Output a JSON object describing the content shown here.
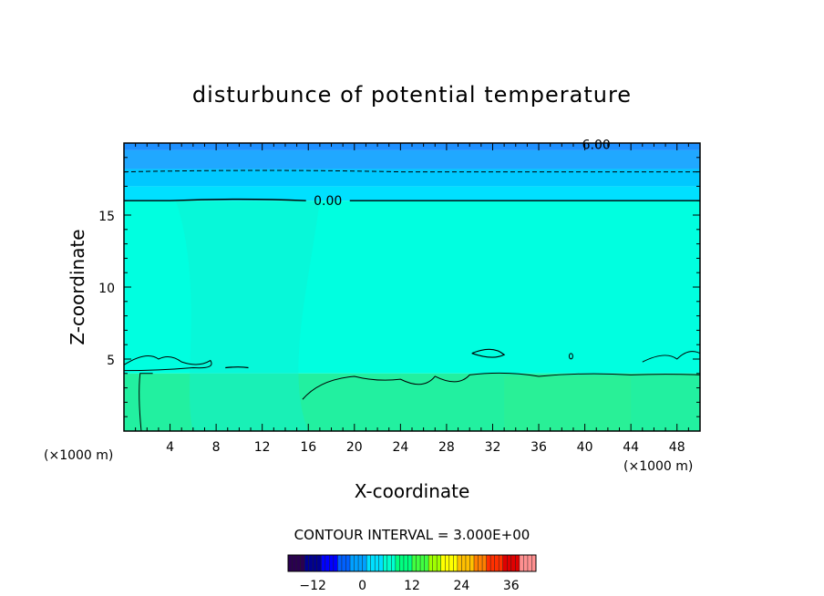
{
  "chart_data": {
    "type": "heatmap",
    "title": "disturbunce of potential temperature",
    "xlabel": "X-coordinate",
    "ylabel": "Z-coordinate",
    "x_unit": "(×1000 m)",
    "y_unit": "(×1000 m)",
    "xlim": [
      0,
      50
    ],
    "ylim": [
      0,
      20
    ],
    "x_ticks": [
      4,
      8,
      12,
      16,
      20,
      24,
      28,
      32,
      36,
      40,
      44,
      48
    ],
    "y_ticks": [
      5,
      10,
      15
    ],
    "contour_interval_text": "CONTOUR INTERVAL = 3.000E+00",
    "contour_labels": [
      {
        "text": "0.00",
        "x": 17.7,
        "z": 16.0
      },
      {
        "text": "6.00",
        "x": 41.0,
        "z": 19.9
      }
    ],
    "color_levels": [
      {
        "z_from": 19.5,
        "z_to": 20.0,
        "value_range": [
          6,
          9
        ],
        "color": "#1e90ff"
      },
      {
        "z_from": 18.2,
        "z_to": 19.5,
        "value_range": [
          3,
          6
        ],
        "color": "#20a8ff"
      },
      {
        "z_from": 17.0,
        "z_to": 18.2,
        "value_range": [
          0,
          3
        ],
        "color": "#00c8ff"
      },
      {
        "z_from": 16.0,
        "z_to": 17.0,
        "value_range": [
          0,
          3
        ],
        "color": "#00e0ff"
      },
      {
        "z_from": 4.0,
        "z_to": 16.0,
        "value_range": [
          0,
          3
        ],
        "color": "#00ffe0"
      },
      {
        "z_from": 0.0,
        "z_to": 4.0,
        "value_range": [
          3,
          6
        ],
        "color": "#22f0a0"
      }
    ],
    "colorbar": {
      "ticks": [
        -12,
        0,
        12,
        24,
        36
      ],
      "range": [
        -18,
        42
      ]
    }
  }
}
